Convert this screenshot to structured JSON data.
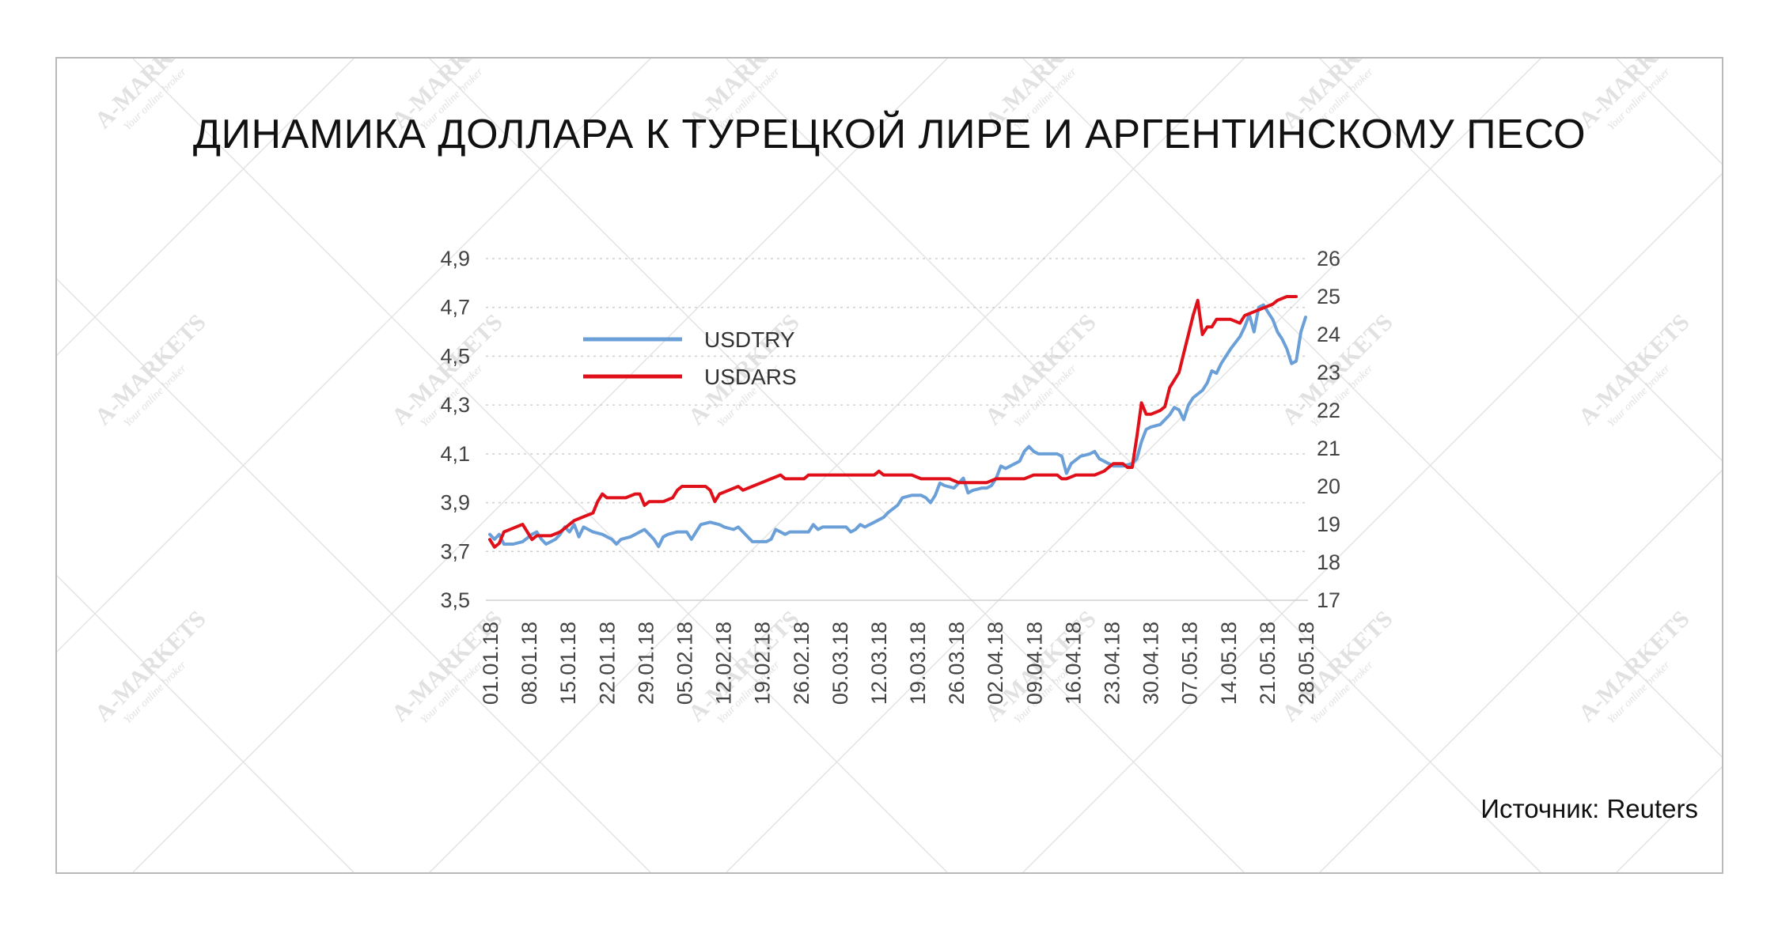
{
  "title": "ДИНАМИКА ДОЛЛАРА К ТУРЕЦКОЙ ЛИРЕ И АРГЕНТИНСКОМУ ПЕСО",
  "source": "Источник: Reuters",
  "watermark": {
    "brand": "A-MARKETS",
    "tagline": "Your online broker"
  },
  "chart_data": {
    "type": "line",
    "title": "ДИНАМИКА ДОЛЛАРА К ТУРЕЦКОЙ ЛИРЕ И АРГЕНТИНСКОМУ ПЕСО",
    "xlabel": "",
    "ylabel": "",
    "x_ticks": [
      "01.01.18",
      "08.01.18",
      "15.01.18",
      "22.01.18",
      "29.01.18",
      "05.02.18",
      "12.02.18",
      "19.02.18",
      "26.02.18",
      "05.03.18",
      "12.03.18",
      "19.03.18",
      "26.03.18",
      "02.04.18",
      "09.04.18",
      "16.04.18",
      "23.04.18",
      "30.04.18",
      "07.05.18",
      "14.05.18",
      "21.05.18",
      "28.05.18"
    ],
    "y_left": {
      "min": 3.5,
      "max": 4.9,
      "ticks": [
        "3,5",
        "3,7",
        "3,9",
        "4,1",
        "4,3",
        "4,5",
        "4,7",
        "4,9"
      ]
    },
    "y_right": {
      "min": 17,
      "max": 26,
      "ticks": [
        "17",
        "18",
        "19",
        "20",
        "21",
        "22",
        "23",
        "24",
        "25",
        "26"
      ]
    },
    "grid": "horizontal-dotted",
    "legend_position": "top-left",
    "series": [
      {
        "name": "USDTRY",
        "axis": "left",
        "color": "#6a9fd8",
        "points": [
          [
            0,
            3.77
          ],
          [
            1,
            3.75
          ],
          [
            2,
            3.77
          ],
          [
            3,
            3.73
          ],
          [
            5,
            3.73
          ],
          [
            7,
            3.74
          ],
          [
            9,
            3.77
          ],
          [
            10,
            3.78
          ],
          [
            11,
            3.75
          ],
          [
            12,
            3.73
          ],
          [
            14,
            3.75
          ],
          [
            15,
            3.77
          ],
          [
            16,
            3.8
          ],
          [
            17,
            3.78
          ],
          [
            18,
            3.81
          ],
          [
            19,
            3.76
          ],
          [
            20,
            3.8
          ],
          [
            22,
            3.78
          ],
          [
            24,
            3.77
          ],
          [
            26,
            3.75
          ],
          [
            27,
            3.73
          ],
          [
            28,
            3.75
          ],
          [
            30,
            3.76
          ],
          [
            32,
            3.78
          ],
          [
            33,
            3.79
          ],
          [
            34,
            3.77
          ],
          [
            35,
            3.75
          ],
          [
            36,
            3.72
          ],
          [
            37,
            3.76
          ],
          [
            38,
            3.77
          ],
          [
            40,
            3.78
          ],
          [
            42,
            3.78
          ],
          [
            43,
            3.75
          ],
          [
            44,
            3.78
          ],
          [
            45,
            3.81
          ],
          [
            47,
            3.82
          ],
          [
            49,
            3.81
          ],
          [
            50,
            3.8
          ],
          [
            52,
            3.79
          ],
          [
            53,
            3.8
          ],
          [
            54,
            3.78
          ],
          [
            55,
            3.76
          ],
          [
            56,
            3.74
          ],
          [
            57,
            3.74
          ],
          [
            59,
            3.74
          ],
          [
            60,
            3.75
          ],
          [
            61,
            3.79
          ],
          [
            62,
            3.78
          ],
          [
            63,
            3.77
          ],
          [
            64,
            3.78
          ],
          [
            66,
            3.78
          ],
          [
            68,
            3.78
          ],
          [
            69,
            3.81
          ],
          [
            70,
            3.79
          ],
          [
            71,
            3.8
          ],
          [
            73,
            3.8
          ],
          [
            75,
            3.8
          ],
          [
            76,
            3.8
          ],
          [
            77,
            3.78
          ],
          [
            78,
            3.79
          ],
          [
            79,
            3.81
          ],
          [
            80,
            3.8
          ],
          [
            82,
            3.82
          ],
          [
            84,
            3.84
          ],
          [
            85,
            3.86
          ],
          [
            87,
            3.89
          ],
          [
            88,
            3.92
          ],
          [
            90,
            3.93
          ],
          [
            92,
            3.93
          ],
          [
            93,
            3.92
          ],
          [
            94,
            3.9
          ],
          [
            95,
            3.93
          ],
          [
            96,
            3.98
          ],
          [
            97,
            3.97
          ],
          [
            99,
            3.96
          ],
          [
            100,
            3.98
          ],
          [
            101,
            4.0
          ],
          [
            102,
            3.94
          ],
          [
            103,
            3.95
          ],
          [
            105,
            3.96
          ],
          [
            106,
            3.96
          ],
          [
            107,
            3.97
          ],
          [
            108,
            4.0
          ],
          [
            109,
            4.05
          ],
          [
            110,
            4.04
          ],
          [
            111,
            4.05
          ],
          [
            113,
            4.07
          ],
          [
            114,
            4.11
          ],
          [
            115,
            4.13
          ],
          [
            116,
            4.11
          ],
          [
            117,
            4.1
          ],
          [
            119,
            4.1
          ],
          [
            121,
            4.1
          ],
          [
            122,
            4.09
          ],
          [
            123,
            4.02
          ],
          [
            124,
            4.06
          ],
          [
            126,
            4.09
          ],
          [
            128,
            4.1
          ],
          [
            129,
            4.11
          ],
          [
            130,
            4.08
          ],
          [
            132,
            4.06
          ],
          [
            133,
            4.05
          ],
          [
            135,
            4.05
          ],
          [
            137,
            4.06
          ],
          [
            138,
            4.08
          ],
          [
            139,
            4.15
          ],
          [
            140,
            4.2
          ],
          [
            141,
            4.21
          ],
          [
            143,
            4.22
          ],
          [
            145,
            4.26
          ],
          [
            146,
            4.29
          ],
          [
            147,
            4.28
          ],
          [
            148,
            4.24
          ],
          [
            149,
            4.3
          ],
          [
            150,
            4.33
          ],
          [
            152,
            4.36
          ],
          [
            153,
            4.39
          ],
          [
            154,
            4.44
          ],
          [
            155,
            4.43
          ],
          [
            156,
            4.47
          ],
          [
            158,
            4.53
          ],
          [
            160,
            4.58
          ],
          [
            161,
            4.62
          ],
          [
            162,
            4.67
          ],
          [
            163,
            4.6
          ],
          [
            164,
            4.7
          ],
          [
            165,
            4.71
          ],
          [
            166,
            4.68
          ],
          [
            167,
            4.65
          ],
          [
            168,
            4.6
          ],
          [
            169,
            4.57
          ],
          [
            170,
            4.53
          ],
          [
            171,
            4.47
          ],
          [
            172,
            4.48
          ],
          [
            173,
            4.6
          ],
          [
            174,
            4.66
          ]
        ]
      },
      {
        "name": "USDARS",
        "axis": "right",
        "color": "#e0101a",
        "points": [
          [
            0,
            18.6
          ],
          [
            1,
            18.4
          ],
          [
            2,
            18.5
          ],
          [
            3,
            18.8
          ],
          [
            5,
            18.9
          ],
          [
            7,
            19.0
          ],
          [
            8,
            18.8
          ],
          [
            9,
            18.6
          ],
          [
            10,
            18.7
          ],
          [
            13,
            18.7
          ],
          [
            15,
            18.8
          ],
          [
            16,
            18.9
          ],
          [
            18,
            19.1
          ],
          [
            20,
            19.2
          ],
          [
            22,
            19.3
          ],
          [
            23,
            19.6
          ],
          [
            24,
            19.8
          ],
          [
            25,
            19.7
          ],
          [
            27,
            19.7
          ],
          [
            29,
            19.7
          ],
          [
            31,
            19.8
          ],
          [
            32,
            19.8
          ],
          [
            33,
            19.5
          ],
          [
            34,
            19.6
          ],
          [
            35,
            19.6
          ],
          [
            37,
            19.6
          ],
          [
            39,
            19.7
          ],
          [
            40,
            19.9
          ],
          [
            41,
            20.0
          ],
          [
            42,
            20.0
          ],
          [
            44,
            20.0
          ],
          [
            46,
            20.0
          ],
          [
            47,
            19.9
          ],
          [
            48,
            19.6
          ],
          [
            49,
            19.8
          ],
          [
            51,
            19.9
          ],
          [
            53,
            20.0
          ],
          [
            54,
            19.9
          ],
          [
            56,
            20.0
          ],
          [
            58,
            20.1
          ],
          [
            60,
            20.2
          ],
          [
            62,
            20.3
          ],
          [
            63,
            20.2
          ],
          [
            64,
            20.2
          ],
          [
            65,
            20.2
          ],
          [
            66,
            20.2
          ],
          [
            67,
            20.2
          ],
          [
            68,
            20.3
          ],
          [
            70,
            20.3
          ],
          [
            71,
            20.3
          ],
          [
            72,
            20.3
          ],
          [
            74,
            20.3
          ],
          [
            76,
            20.3
          ],
          [
            77,
            20.3
          ],
          [
            79,
            20.3
          ],
          [
            81,
            20.3
          ],
          [
            82,
            20.3
          ],
          [
            83,
            20.4
          ],
          [
            84,
            20.3
          ],
          [
            85,
            20.3
          ],
          [
            86,
            20.3
          ],
          [
            88,
            20.3
          ],
          [
            90,
            20.3
          ],
          [
            92,
            20.2
          ],
          [
            94,
            20.2
          ],
          [
            96,
            20.2
          ],
          [
            98,
            20.2
          ],
          [
            100,
            20.1
          ],
          [
            102,
            20.1
          ],
          [
            103,
            20.1
          ],
          [
            104,
            20.1
          ],
          [
            106,
            20.1
          ],
          [
            108,
            20.2
          ],
          [
            110,
            20.2
          ],
          [
            112,
            20.2
          ],
          [
            114,
            20.2
          ],
          [
            116,
            20.3
          ],
          [
            118,
            20.3
          ],
          [
            120,
            20.3
          ],
          [
            121,
            20.3
          ],
          [
            122,
            20.2
          ],
          [
            123,
            20.2
          ],
          [
            125,
            20.3
          ],
          [
            127,
            20.3
          ],
          [
            129,
            20.3
          ],
          [
            131,
            20.4
          ],
          [
            133,
            20.6
          ],
          [
            135,
            20.6
          ],
          [
            136,
            20.5
          ],
          [
            137,
            20.5
          ],
          [
            138,
            21.3
          ],
          [
            139,
            22.2
          ],
          [
            140,
            21.9
          ],
          [
            141,
            21.9
          ],
          [
            143,
            22.0
          ],
          [
            144,
            22.1
          ],
          [
            145,
            22.6
          ],
          [
            146,
            22.8
          ],
          [
            147,
            23.0
          ],
          [
            148,
            23.5
          ],
          [
            149,
            24.0
          ],
          [
            150,
            24.5
          ],
          [
            151,
            24.9
          ],
          [
            152,
            24.0
          ],
          [
            153,
            24.2
          ],
          [
            154,
            24.2
          ],
          [
            155,
            24.4
          ],
          [
            156,
            24.4
          ],
          [
            157,
            24.4
          ],
          [
            158,
            24.4
          ],
          [
            160,
            24.3
          ],
          [
            161,
            24.5
          ],
          [
            163,
            24.6
          ],
          [
            165,
            24.7
          ],
          [
            167,
            24.8
          ],
          [
            168,
            24.9
          ],
          [
            170,
            25.0
          ],
          [
            172,
            25.0
          ]
        ]
      }
    ]
  }
}
